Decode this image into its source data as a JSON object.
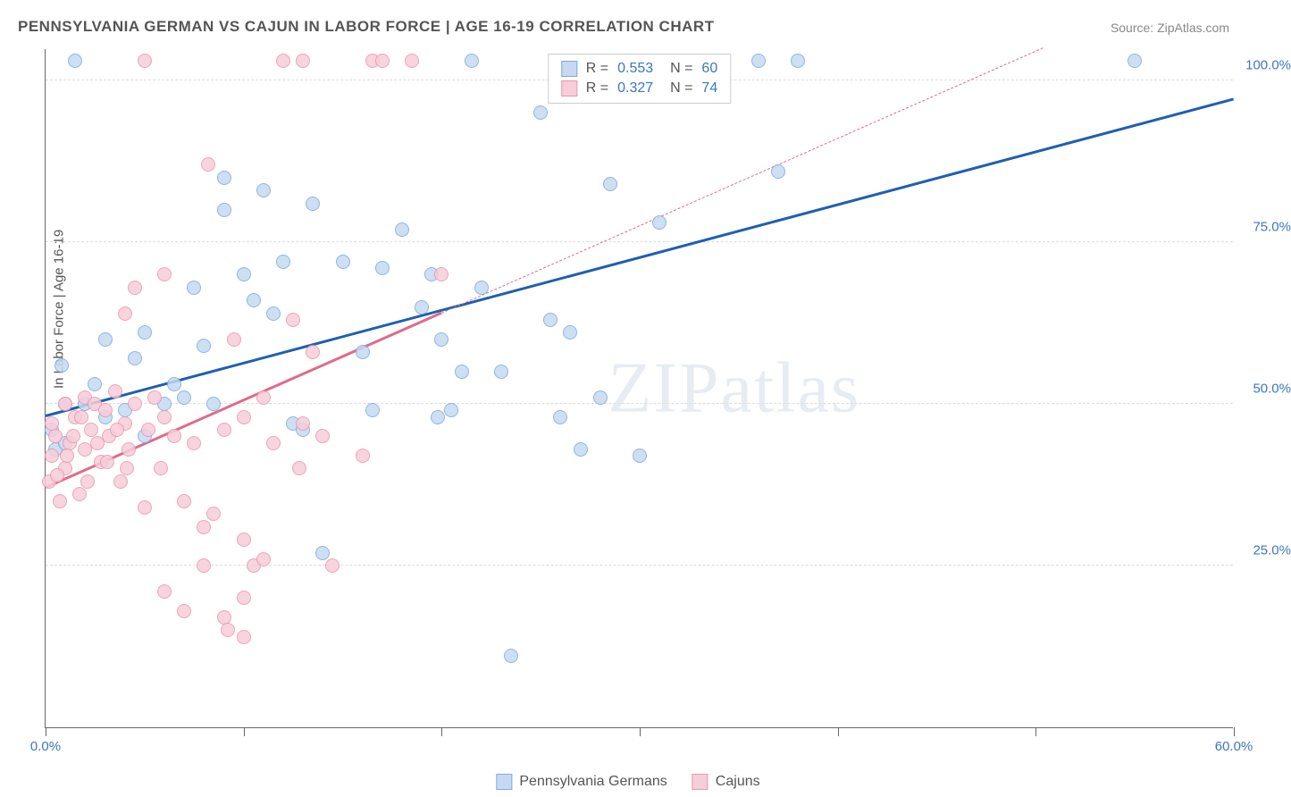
{
  "title": "PENNSYLVANIA GERMAN VS CAJUN IN LABOR FORCE | AGE 16-19 CORRELATION CHART",
  "source": "Source: ZipAtlas.com",
  "ylabel": "In Labor Force | Age 16-19",
  "watermark": "ZIPatlas",
  "chart": {
    "type": "scatter",
    "xlim": [
      0,
      60
    ],
    "ylim": [
      0,
      105
    ],
    "x_ticks": [
      0,
      10,
      20,
      30,
      40,
      50,
      60
    ],
    "x_tick_labels": {
      "0": "0.0%",
      "60": "60.0%"
    },
    "y_gridlines": [
      25,
      50,
      75,
      100
    ],
    "y_tick_labels": {
      "25": "25.0%",
      "50": "50.0%",
      "75": "75.0%",
      "100": "100.0%"
    },
    "grid_color": "#dddddd",
    "axis_label_color": "#3b77c2",
    "point_radius": 8,
    "series": [
      {
        "name": "Pennsylvania Germans",
        "fill": "#c5daf2",
        "stroke": "#7fa9d9",
        "points": [
          [
            0.3,
            46
          ],
          [
            0.5,
            43
          ],
          [
            0.8,
            56
          ],
          [
            1,
            50
          ],
          [
            1,
            44
          ],
          [
            1.5,
            103
          ],
          [
            2,
            50
          ],
          [
            2.5,
            53
          ],
          [
            3,
            60
          ],
          [
            3,
            48
          ],
          [
            4,
            49
          ],
          [
            4.5,
            57
          ],
          [
            5,
            45
          ],
          [
            5,
            61
          ],
          [
            6,
            50
          ],
          [
            6.5,
            53
          ],
          [
            7,
            51
          ],
          [
            7.5,
            68
          ],
          [
            8,
            59
          ],
          [
            8.5,
            50
          ],
          [
            9,
            80
          ],
          [
            9,
            85
          ],
          [
            10,
            70
          ],
          [
            10.5,
            66
          ],
          [
            11,
            83
          ],
          [
            11.5,
            64
          ],
          [
            12,
            72
          ],
          [
            12.5,
            47
          ],
          [
            13,
            46
          ],
          [
            13.5,
            81
          ],
          [
            14,
            27
          ],
          [
            15,
            72
          ],
          [
            16,
            58
          ],
          [
            16.5,
            49
          ],
          [
            17,
            71
          ],
          [
            18,
            77
          ],
          [
            19,
            65
          ],
          [
            19.5,
            70
          ],
          [
            19.8,
            48
          ],
          [
            20,
            60
          ],
          [
            20.5,
            49
          ],
          [
            21,
            55
          ],
          [
            21.5,
            103
          ],
          [
            22,
            68
          ],
          [
            23,
            55
          ],
          [
            23.5,
            11
          ],
          [
            25,
            95
          ],
          [
            25.5,
            63
          ],
          [
            26,
            48
          ],
          [
            26.5,
            61
          ],
          [
            27,
            43
          ],
          [
            27.5,
            103
          ],
          [
            28,
            51
          ],
          [
            28.5,
            84
          ],
          [
            30,
            42
          ],
          [
            31,
            78
          ],
          [
            36,
            103
          ],
          [
            37,
            86
          ],
          [
            38,
            103
          ],
          [
            55,
            103
          ]
        ],
        "trend": {
          "x1": 0,
          "y1": 48,
          "x2": 60,
          "y2": 97,
          "color": "#1f5fb0",
          "solid_until_x": 60
        }
      },
      {
        "name": "Cajuns",
        "fill": "#f6cdd9",
        "stroke": "#e896ae",
        "points": [
          [
            0.2,
            38
          ],
          [
            0.3,
            42
          ],
          [
            0.5,
            45
          ],
          [
            0.7,
            35
          ],
          [
            1,
            50
          ],
          [
            1,
            40
          ],
          [
            1.2,
            44
          ],
          [
            1.5,
            48
          ],
          [
            1.7,
            36
          ],
          [
            2,
            51
          ],
          [
            2,
            43
          ],
          [
            2.3,
            46
          ],
          [
            2.5,
            50
          ],
          [
            2.8,
            41
          ],
          [
            3,
            49
          ],
          [
            3.2,
            45
          ],
          [
            3.5,
            52
          ],
          [
            3.8,
            38
          ],
          [
            4,
            47
          ],
          [
            4,
            64
          ],
          [
            4.2,
            43
          ],
          [
            4.5,
            50
          ],
          [
            4.5,
            68
          ],
          [
            5,
            34
          ],
          [
            5,
            103
          ],
          [
            5.2,
            46
          ],
          [
            5.5,
            51
          ],
          [
            5.8,
            40
          ],
          [
            6,
            48
          ],
          [
            6,
            70
          ],
          [
            6,
            21
          ],
          [
            6.5,
            45
          ],
          [
            7,
            35
          ],
          [
            7,
            18
          ],
          [
            7.5,
            44
          ],
          [
            8,
            31
          ],
          [
            8,
            25
          ],
          [
            8.2,
            87
          ],
          [
            8.5,
            33
          ],
          [
            9,
            46
          ],
          [
            9,
            17
          ],
          [
            9.2,
            15
          ],
          [
            9.5,
            60
          ],
          [
            10,
            48
          ],
          [
            10,
            29
          ],
          [
            10,
            20
          ],
          [
            10,
            14
          ],
          [
            10.5,
            25
          ],
          [
            11,
            51
          ],
          [
            11,
            26
          ],
          [
            11.5,
            44
          ],
          [
            12,
            103
          ],
          [
            12.5,
            63
          ],
          [
            12.8,
            40
          ],
          [
            13,
            47
          ],
          [
            13,
            103
          ],
          [
            13.5,
            58
          ],
          [
            14,
            45
          ],
          [
            14.5,
            25
          ],
          [
            16,
            42
          ],
          [
            16.5,
            103
          ],
          [
            17,
            103
          ],
          [
            18.5,
            103
          ],
          [
            20,
            70
          ],
          [
            0.3,
            47
          ],
          [
            0.6,
            39
          ],
          [
            1.1,
            42
          ],
          [
            1.4,
            45
          ],
          [
            1.8,
            48
          ],
          [
            2.1,
            38
          ],
          [
            2.6,
            44
          ],
          [
            3.1,
            41
          ],
          [
            3.6,
            46
          ],
          [
            4.1,
            40
          ]
        ],
        "trend": {
          "x1": 0,
          "y1": 37,
          "x2": 60,
          "y2": 118,
          "color": "#e06a8c",
          "solid_until_x": 20
        }
      }
    ]
  },
  "stats": [
    {
      "swatch_fill": "#c5daf2",
      "swatch_stroke": "#7fa9d9",
      "r": "0.553",
      "n": "60"
    },
    {
      "swatch_fill": "#f6cdd9",
      "swatch_stroke": "#e896ae",
      "r": "0.327",
      "n": "74"
    }
  ],
  "legend": [
    {
      "swatch_fill": "#c5daf2",
      "swatch_stroke": "#7fa9d9",
      "label": "Pennsylvania Germans"
    },
    {
      "swatch_fill": "#f6cdd9",
      "swatch_stroke": "#e896ae",
      "label": "Cajuns"
    }
  ]
}
